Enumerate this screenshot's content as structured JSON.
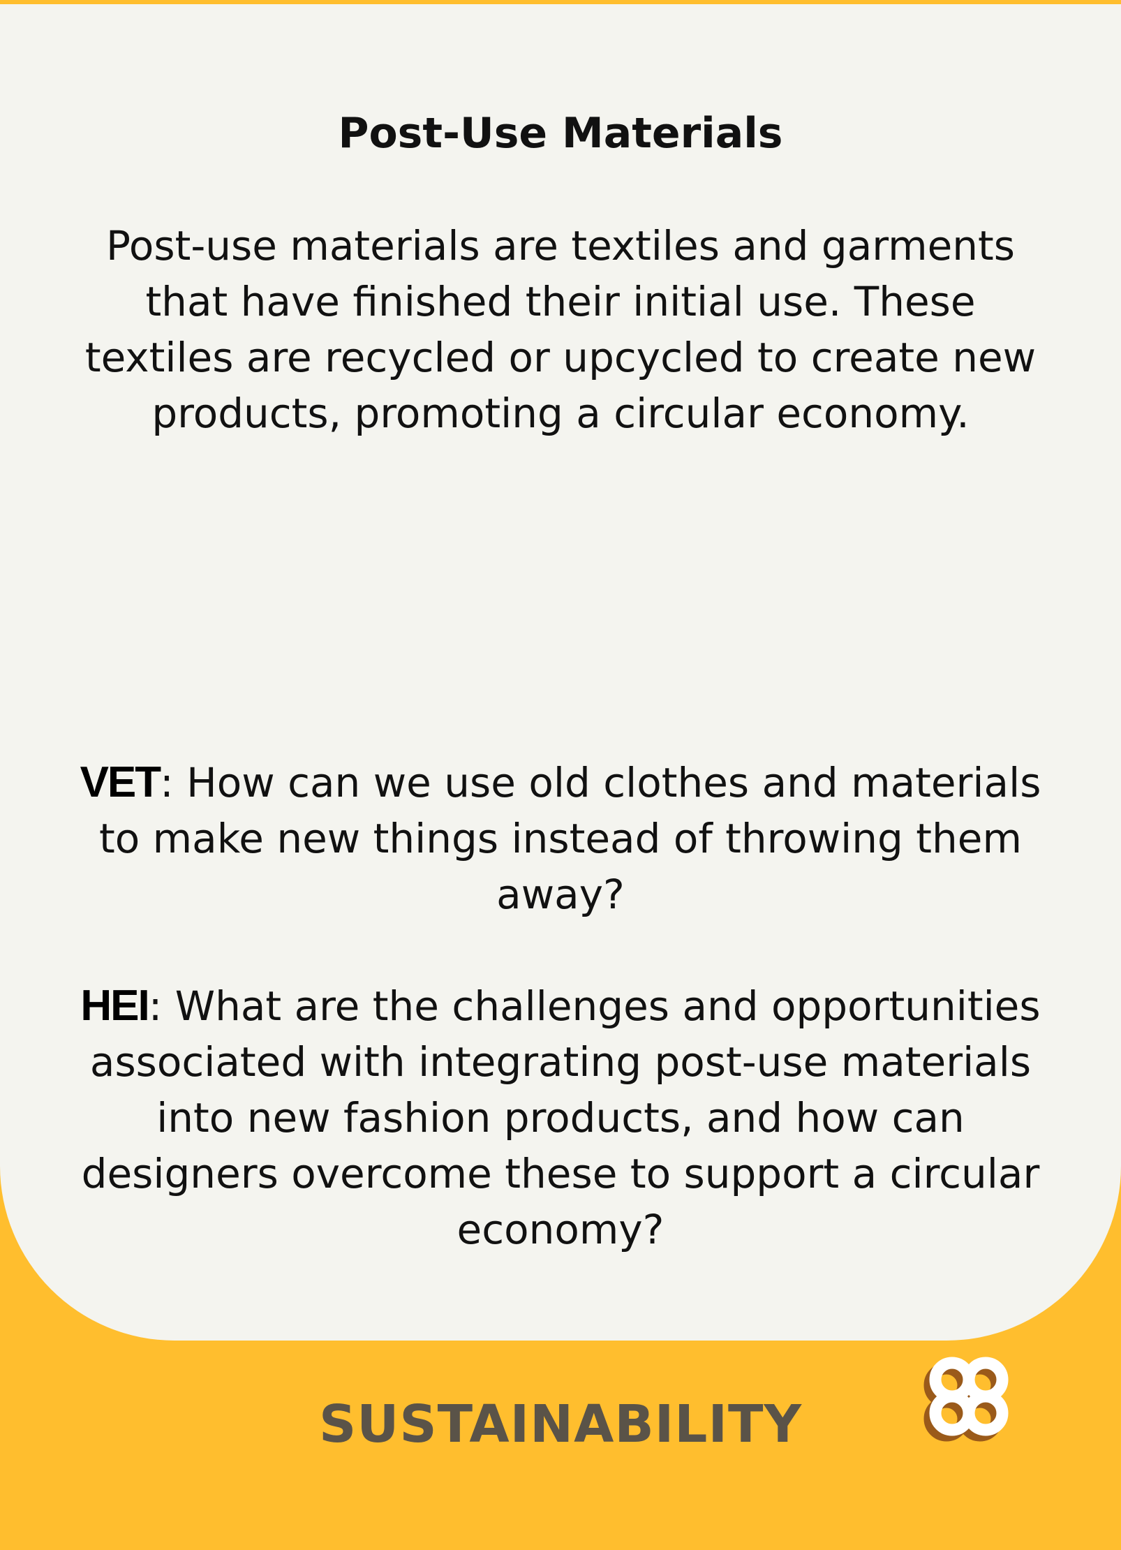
{
  "card": {
    "title": "Post-Use Materials",
    "definition": "Post-use materials are textiles and garments that have finished their initial use. These textiles are recycled or upcycled to create new products, promoting a circular economy.",
    "questions": [
      {
        "label": "VET",
        "text": ": How can we use old clothes and materials to make new things instead of throwing them away?"
      },
      {
        "label": "HEI",
        "text": ": What are the challenges and opportunities associated with integrating post-use materials into new fashion products, and how can designers overcome these to support a circular economy?"
      }
    ]
  },
  "footer": {
    "category": "SUSTAINABILITY",
    "logo_icon": "interlinked-loops-logo-icon"
  },
  "colors": {
    "background_accent": "#FFBE2E",
    "panel": "#F4F4EF",
    "text": "#111111",
    "category_text": "#5A5348",
    "logo_fill": "#FFFFFF",
    "logo_shadow": "#9A5A1A"
  }
}
